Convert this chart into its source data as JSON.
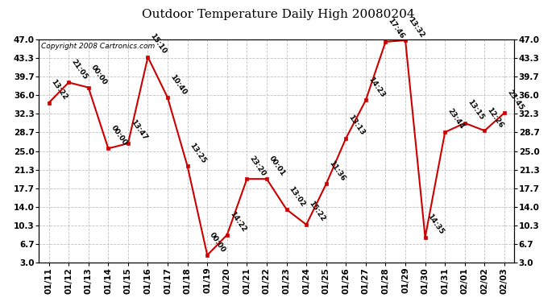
{
  "title": "Outdoor Temperature Daily High 20080204",
  "copyright": "Copyright 2008 Cartronics.com",
  "dates": [
    "01/11",
    "01/12",
    "01/13",
    "01/14",
    "01/15",
    "01/16",
    "01/17",
    "01/18",
    "01/19",
    "01/20",
    "01/21",
    "01/22",
    "01/23",
    "01/24",
    "01/25",
    "01/26",
    "01/27",
    "01/28",
    "01/29",
    "01/30",
    "01/31",
    "02/01",
    "02/02",
    "02/03"
  ],
  "values": [
    34.5,
    38.5,
    37.5,
    25.5,
    26.5,
    43.5,
    35.5,
    22.0,
    4.5,
    8.5,
    19.5,
    19.5,
    13.5,
    10.5,
    18.5,
    27.5,
    35.0,
    46.5,
    46.8,
    8.0,
    28.7,
    30.5,
    29.0,
    32.5
  ],
  "time_labels": [
    "13:22",
    "21:05",
    "00:00",
    "00:00",
    "13:47",
    "15:10",
    "10:40",
    "13:25",
    "00:00",
    "14:22",
    "23:20",
    "00:01",
    "13:02",
    "15:22",
    "11:36",
    "13:13",
    "14:23",
    "17:46",
    "13:32",
    "14:35",
    "23:44",
    "13:15",
    "12:26",
    "23:45"
  ],
  "yticks": [
    3.0,
    6.7,
    10.3,
    14.0,
    17.7,
    21.3,
    25.0,
    28.7,
    32.3,
    36.0,
    39.7,
    43.3,
    47.0
  ],
  "ymin": 3.0,
  "ymax": 47.0,
  "line_color": "#CC0000",
  "marker_color": "#CC0000",
  "background_color": "#FFFFFF",
  "plot_background": "#FFFFFF",
  "grid_color": "#BBBBBB",
  "title_fontsize": 11,
  "copyright_fontsize": 6.5,
  "label_fontsize": 6.5,
  "tick_fontsize": 7.5
}
